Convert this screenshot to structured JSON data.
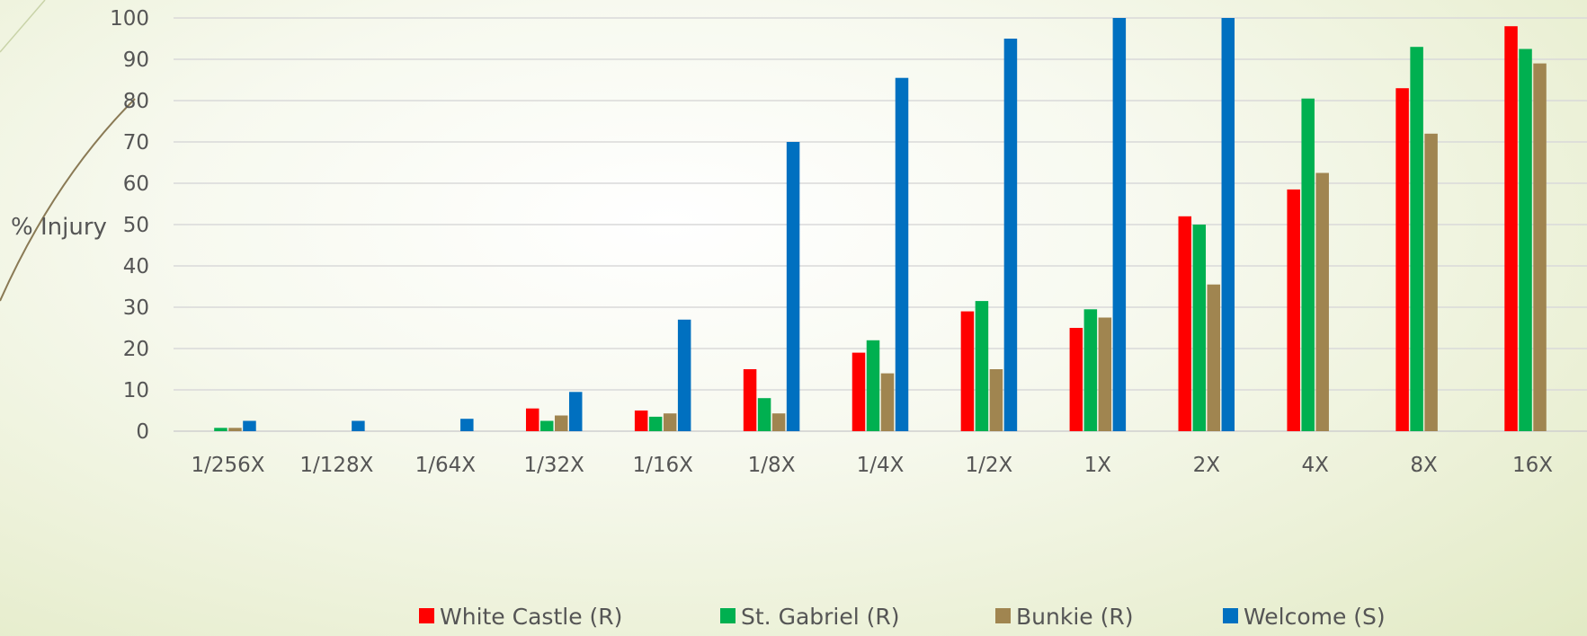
{
  "chart_data": {
    "type": "bar",
    "title": "",
    "xlabel": "",
    "ylabel": "% Injury",
    "ylim": [
      0,
      100
    ],
    "yticks": [
      0,
      10,
      20,
      30,
      40,
      50,
      60,
      70,
      80,
      90,
      100
    ],
    "grid": true,
    "legend_position": "bottom",
    "categories": [
      "1/256X",
      "1/128X",
      "1/64X",
      "1/32X",
      "1/16X",
      "1/8X",
      "1/4X",
      "1/2X",
      "1X",
      "2X",
      "4X",
      "8X",
      "16X"
    ],
    "series": [
      {
        "name": "White Castle (R)",
        "color": "#ff0000",
        "values": [
          0,
          0,
          0,
          5.5,
          5,
          15,
          19,
          29,
          25,
          52,
          58.5,
          83,
          98
        ]
      },
      {
        "name": "St. Gabriel (R)",
        "color": "#00b050",
        "values": [
          0.8,
          0,
          0,
          2.5,
          3.5,
          8,
          22,
          31.5,
          29.5,
          50,
          80.5,
          93,
          92.5
        ]
      },
      {
        "name": "Bunkie (R)",
        "color": "#a08550",
        "values": [
          0.8,
          0,
          0,
          3.8,
          4.3,
          4.3,
          14,
          15,
          27.5,
          35.5,
          62.5,
          72,
          89
        ]
      },
      {
        "name": "Welcome (S)",
        "color": "#0070c0",
        "values": [
          2.5,
          2.5,
          3,
          9.5,
          27,
          70,
          85.5,
          95,
          100,
          100,
          0,
          0,
          0
        ]
      }
    ]
  }
}
